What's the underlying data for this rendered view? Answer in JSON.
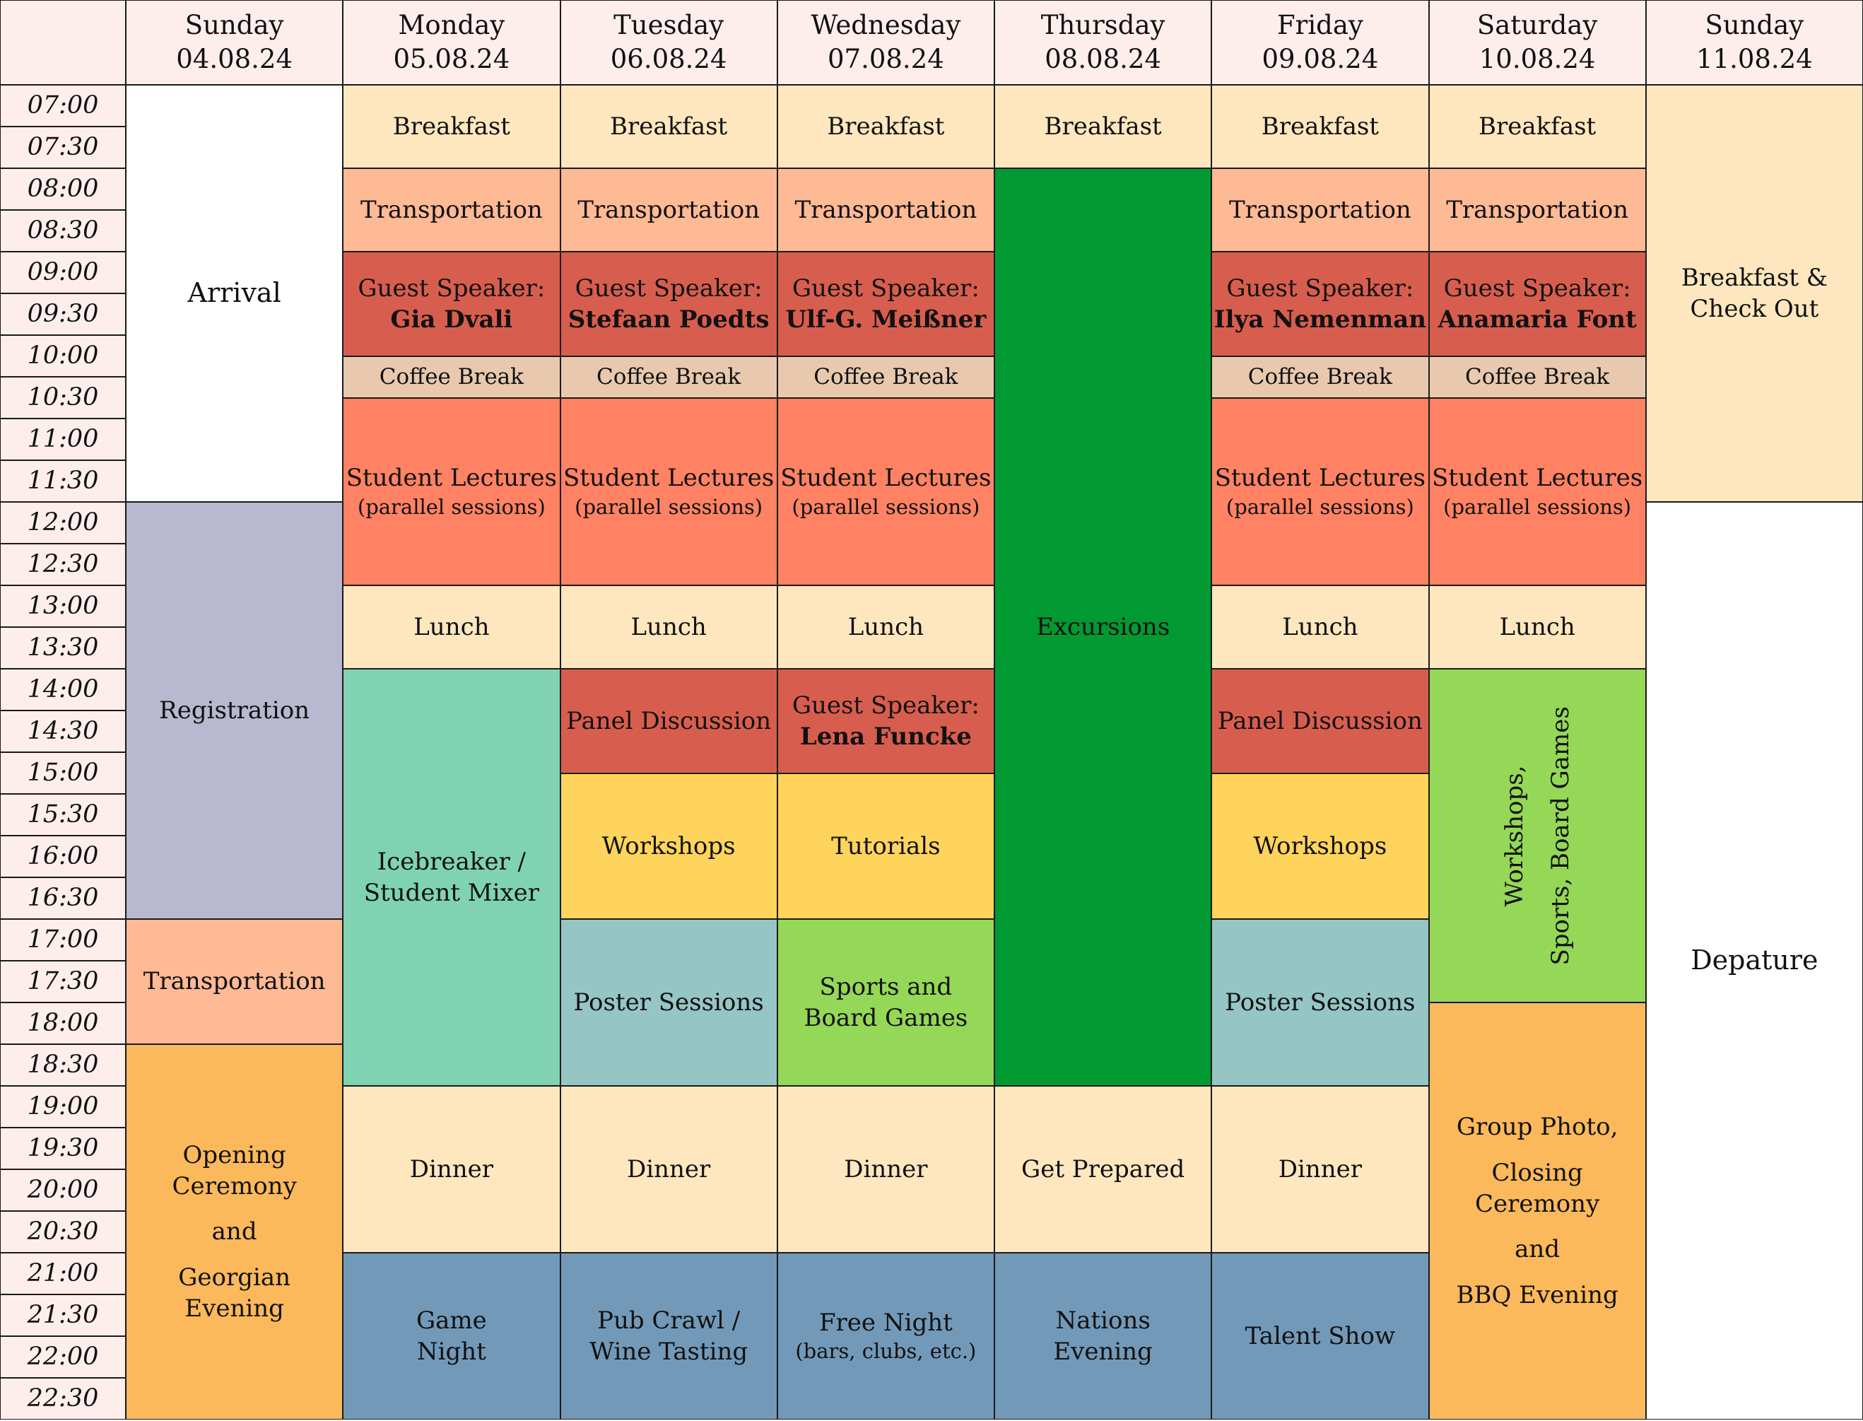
{
  "colors": {
    "header": "#fdeeec",
    "meal": "#fee7bf",
    "transport": "#feb995",
    "speaker": "#d75e4e",
    "coffee": "#e8c9ae",
    "lectures": "#fe8263",
    "registration": "#b8b8d0",
    "mixer": "#80d3b2",
    "workshops": "#fed45c",
    "poster": "#96c5c5",
    "sports": "#95d757",
    "excursion": "#019a32",
    "evening": "#7299b8",
    "ceremony": "#fbb95c",
    "blank": "#ffffff"
  },
  "days": [
    {
      "name": "Sunday",
      "date": "04.08.24"
    },
    {
      "name": "Monday",
      "date": "05.08.24"
    },
    {
      "name": "Tuesday",
      "date": "06.08.24"
    },
    {
      "name": "Wednesday",
      "date": "07.08.24"
    },
    {
      "name": "Thursday",
      "date": "08.08.24"
    },
    {
      "name": "Friday",
      "date": "09.08.24"
    },
    {
      "name": "Saturday",
      "date": "10.08.24"
    },
    {
      "name": "Sunday",
      "date": "11.08.24"
    }
  ],
  "times": [
    "07:00",
    "07:30",
    "08:00",
    "08:30",
    "09:00",
    "09:30",
    "10:00",
    "10:30",
    "11:00",
    "11:30",
    "12:00",
    "12:30",
    "13:00",
    "13:30",
    "14:00",
    "14:30",
    "15:00",
    "15:30",
    "16:00",
    "16:30",
    "17:00",
    "17:30",
    "18:00",
    "18:30",
    "19:00",
    "19:30",
    "20:00",
    "20:30",
    "21:00",
    "21:30",
    "22:00",
    "22:30"
  ],
  "events": [
    {
      "day": 0,
      "start": "07:00",
      "end": "12:00",
      "color": "blank",
      "size": "big",
      "lines": [
        {
          "t": "Arrival"
        }
      ]
    },
    {
      "day": 0,
      "start": "12:00",
      "end": "17:00",
      "color": "registration",
      "lines": [
        {
          "t": "Registration"
        }
      ]
    },
    {
      "day": 0,
      "start": "17:00",
      "end": "18:30",
      "color": "transport",
      "lines": [
        {
          "t": "Transportation"
        }
      ]
    },
    {
      "day": 0,
      "start": "18:30",
      "end": "23:00",
      "color": "ceremony",
      "lines": [
        {
          "t": "Opening"
        },
        {
          "t": "Ceremony"
        },
        {
          "gap": true
        },
        {
          "t": "and"
        },
        {
          "gap": true
        },
        {
          "t": "Georgian"
        },
        {
          "t": "Evening"
        }
      ]
    },
    {
      "day": 1,
      "start": "07:00",
      "end": "08:00",
      "color": "meal",
      "lines": [
        {
          "t": "Breakfast"
        }
      ]
    },
    {
      "day": 1,
      "start": "08:00",
      "end": "09:00",
      "color": "transport",
      "lines": [
        {
          "t": "Transportation"
        }
      ]
    },
    {
      "day": 1,
      "start": "09:00",
      "end": "10:15",
      "color": "speaker",
      "lines": [
        {
          "t": "Guest Speaker:"
        },
        {
          "t": "Gia Dvali",
          "b": true
        }
      ]
    },
    {
      "day": 1,
      "start": "10:15",
      "end": "10:45",
      "color": "coffee",
      "size": "small",
      "lines": [
        {
          "t": "Coffee Break"
        }
      ]
    },
    {
      "day": 1,
      "start": "10:45",
      "end": "13:00",
      "color": "lectures",
      "lines": [
        {
          "t": "Student Lectures"
        },
        {
          "t": "(parallel sessions)",
          "s": true
        }
      ]
    },
    {
      "day": 1,
      "start": "13:00",
      "end": "14:00",
      "color": "meal",
      "lines": [
        {
          "t": "Lunch"
        }
      ]
    },
    {
      "day": 1,
      "start": "14:00",
      "end": "19:00",
      "color": "mixer",
      "lines": [
        {
          "t": "Icebreaker /"
        },
        {
          "t": "Student Mixer"
        }
      ]
    },
    {
      "day": 1,
      "start": "19:00",
      "end": "21:00",
      "color": "meal",
      "lines": [
        {
          "t": "Dinner"
        }
      ]
    },
    {
      "day": 1,
      "start": "21:00",
      "end": "23:00",
      "color": "evening",
      "lines": [
        {
          "t": "Game"
        },
        {
          "t": "Night"
        }
      ]
    },
    {
      "day": 2,
      "start": "07:00",
      "end": "08:00",
      "color": "meal",
      "lines": [
        {
          "t": "Breakfast"
        }
      ]
    },
    {
      "day": 2,
      "start": "08:00",
      "end": "09:00",
      "color": "transport",
      "lines": [
        {
          "t": "Transportation"
        }
      ]
    },
    {
      "day": 2,
      "start": "09:00",
      "end": "10:15",
      "color": "speaker",
      "lines": [
        {
          "t": "Guest Speaker:"
        },
        {
          "t": "Stefaan Poedts",
          "b": true
        }
      ]
    },
    {
      "day": 2,
      "start": "10:15",
      "end": "10:45",
      "color": "coffee",
      "size": "small",
      "lines": [
        {
          "t": "Coffee Break"
        }
      ]
    },
    {
      "day": 2,
      "start": "10:45",
      "end": "13:00",
      "color": "lectures",
      "lines": [
        {
          "t": "Student Lectures"
        },
        {
          "t": "(parallel sessions)",
          "s": true
        }
      ]
    },
    {
      "day": 2,
      "start": "13:00",
      "end": "14:00",
      "color": "meal",
      "lines": [
        {
          "t": "Lunch"
        }
      ]
    },
    {
      "day": 2,
      "start": "14:00",
      "end": "15:15",
      "color": "speaker",
      "lines": [
        {
          "t": "Panel Discussion"
        }
      ]
    },
    {
      "day": 2,
      "start": "15:15",
      "end": "17:00",
      "color": "workshops",
      "lines": [
        {
          "t": "Workshops"
        }
      ]
    },
    {
      "day": 2,
      "start": "17:00",
      "end": "19:00",
      "color": "poster",
      "lines": [
        {
          "t": "Poster Sessions"
        }
      ]
    },
    {
      "day": 2,
      "start": "19:00",
      "end": "21:00",
      "color": "meal",
      "lines": [
        {
          "t": "Dinner"
        }
      ]
    },
    {
      "day": 2,
      "start": "21:00",
      "end": "23:00",
      "color": "evening",
      "lines": [
        {
          "t": "Pub Crawl /"
        },
        {
          "t": "Wine Tasting"
        }
      ]
    },
    {
      "day": 3,
      "start": "07:00",
      "end": "08:00",
      "color": "meal",
      "lines": [
        {
          "t": "Breakfast"
        }
      ]
    },
    {
      "day": 3,
      "start": "08:00",
      "end": "09:00",
      "color": "transport",
      "lines": [
        {
          "t": "Transportation"
        }
      ]
    },
    {
      "day": 3,
      "start": "09:00",
      "end": "10:15",
      "color": "speaker",
      "lines": [
        {
          "t": "Guest Speaker:"
        },
        {
          "t": "Ulf-G. Meißner",
          "b": true
        }
      ]
    },
    {
      "day": 3,
      "start": "10:15",
      "end": "10:45",
      "color": "coffee",
      "size": "small",
      "lines": [
        {
          "t": "Coffee Break"
        }
      ]
    },
    {
      "day": 3,
      "start": "10:45",
      "end": "13:00",
      "color": "lectures",
      "lines": [
        {
          "t": "Student Lectures"
        },
        {
          "t": "(parallel sessions)",
          "s": true
        }
      ]
    },
    {
      "day": 3,
      "start": "13:00",
      "end": "14:00",
      "color": "meal",
      "lines": [
        {
          "t": "Lunch"
        }
      ]
    },
    {
      "day": 3,
      "start": "14:00",
      "end": "15:15",
      "color": "speaker",
      "lines": [
        {
          "t": "Guest Speaker:"
        },
        {
          "t": "Lena Funcke",
          "b": true
        }
      ]
    },
    {
      "day": 3,
      "start": "15:15",
      "end": "17:00",
      "color": "workshops",
      "lines": [
        {
          "t": "Tutorials"
        }
      ]
    },
    {
      "day": 3,
      "start": "17:00",
      "end": "19:00",
      "color": "sports",
      "lines": [
        {
          "t": "Sports and"
        },
        {
          "t": "Board Games"
        }
      ]
    },
    {
      "day": 3,
      "start": "19:00",
      "end": "21:00",
      "color": "meal",
      "lines": [
        {
          "t": "Dinner"
        }
      ]
    },
    {
      "day": 3,
      "start": "21:00",
      "end": "23:00",
      "color": "evening",
      "lines": [
        {
          "t": "Free Night"
        },
        {
          "t": "(bars, clubs, etc.)",
          "s": true
        }
      ]
    },
    {
      "day": 4,
      "start": "07:00",
      "end": "08:00",
      "color": "meal",
      "lines": [
        {
          "t": "Breakfast"
        }
      ]
    },
    {
      "day": 4,
      "start": "08:00",
      "end": "19:00",
      "color": "excursion",
      "lines": [
        {
          "t": "Excursions"
        }
      ]
    },
    {
      "day": 4,
      "start": "19:00",
      "end": "21:00",
      "color": "meal",
      "lines": [
        {
          "t": "Get Prepared"
        }
      ]
    },
    {
      "day": 4,
      "start": "21:00",
      "end": "23:00",
      "color": "evening",
      "lines": [
        {
          "t": "Nations"
        },
        {
          "t": "Evening"
        }
      ]
    },
    {
      "day": 5,
      "start": "07:00",
      "end": "08:00",
      "color": "meal",
      "lines": [
        {
          "t": "Breakfast"
        }
      ]
    },
    {
      "day": 5,
      "start": "08:00",
      "end": "09:00",
      "color": "transport",
      "lines": [
        {
          "t": "Transportation"
        }
      ]
    },
    {
      "day": 5,
      "start": "09:00",
      "end": "10:15",
      "color": "speaker",
      "lines": [
        {
          "t": "Guest Speaker:"
        },
        {
          "t": "Ilya Nemenman",
          "b": true
        }
      ]
    },
    {
      "day": 5,
      "start": "10:15",
      "end": "10:45",
      "color": "coffee",
      "size": "small",
      "lines": [
        {
          "t": "Coffee Break"
        }
      ]
    },
    {
      "day": 5,
      "start": "10:45",
      "end": "13:00",
      "color": "lectures",
      "lines": [
        {
          "t": "Student Lectures"
        },
        {
          "t": "(parallel sessions)",
          "s": true
        }
      ]
    },
    {
      "day": 5,
      "start": "13:00",
      "end": "14:00",
      "color": "meal",
      "lines": [
        {
          "t": "Lunch"
        }
      ]
    },
    {
      "day": 5,
      "start": "14:00",
      "end": "15:15",
      "color": "speaker",
      "lines": [
        {
          "t": "Panel Discussion"
        }
      ]
    },
    {
      "day": 5,
      "start": "15:15",
      "end": "17:00",
      "color": "workshops",
      "lines": [
        {
          "t": "Workshops"
        }
      ]
    },
    {
      "day": 5,
      "start": "17:00",
      "end": "19:00",
      "color": "poster",
      "lines": [
        {
          "t": "Poster Sessions"
        }
      ]
    },
    {
      "day": 5,
      "start": "19:00",
      "end": "21:00",
      "color": "meal",
      "lines": [
        {
          "t": "Dinner"
        }
      ]
    },
    {
      "day": 5,
      "start": "21:00",
      "end": "23:00",
      "color": "evening",
      "lines": [
        {
          "t": "Talent Show"
        }
      ]
    },
    {
      "day": 6,
      "start": "07:00",
      "end": "08:00",
      "color": "meal",
      "lines": [
        {
          "t": "Breakfast"
        }
      ]
    },
    {
      "day": 6,
      "start": "08:00",
      "end": "09:00",
      "color": "transport",
      "lines": [
        {
          "t": "Transportation"
        }
      ]
    },
    {
      "day": 6,
      "start": "09:00",
      "end": "10:15",
      "color": "speaker",
      "lines": [
        {
          "t": "Guest Speaker:"
        },
        {
          "t": "Anamaria Font",
          "b": true
        }
      ]
    },
    {
      "day": 6,
      "start": "10:15",
      "end": "10:45",
      "color": "coffee",
      "size": "small",
      "lines": [
        {
          "t": "Coffee Break"
        }
      ]
    },
    {
      "day": 6,
      "start": "10:45",
      "end": "13:00",
      "color": "lectures",
      "lines": [
        {
          "t": "Student Lectures"
        },
        {
          "t": "(parallel sessions)",
          "s": true
        }
      ]
    },
    {
      "day": 6,
      "start": "13:00",
      "end": "14:00",
      "color": "meal",
      "lines": [
        {
          "t": "Lunch"
        }
      ]
    },
    {
      "day": 6,
      "start": "14:00",
      "end": "18:00",
      "color": "sports",
      "rotate": true,
      "lines": [
        {
          "t": "Workshops,"
        },
        {
          "gap": true
        },
        {
          "t": "Sports, Board Games"
        }
      ]
    },
    {
      "day": 6,
      "start": "18:00",
      "end": "23:00",
      "color": "ceremony",
      "lines": [
        {
          "t": "Group Photo,"
        },
        {
          "gap": true
        },
        {
          "t": "Closing"
        },
        {
          "t": "Ceremony"
        },
        {
          "gap": true
        },
        {
          "t": "and"
        },
        {
          "gap": true
        },
        {
          "t": "BBQ Evening"
        }
      ]
    },
    {
      "day": 7,
      "start": "07:00",
      "end": "12:00",
      "color": "meal",
      "lines": [
        {
          "t": "Breakfast &"
        },
        {
          "t": "Check Out"
        }
      ]
    },
    {
      "day": 7,
      "start": "12:00",
      "end": "23:00",
      "color": "blank",
      "size": "big",
      "lines": [
        {
          "t": "Depature"
        }
      ]
    }
  ]
}
